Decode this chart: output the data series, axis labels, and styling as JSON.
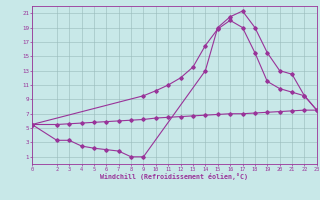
{
  "background_color": "#c8e8e8",
  "line_color": "#993399",
  "grid_color": "#99bbbb",
  "xlabel": "Windchill (Refroidissement éolien,°C)",
  "xlim": [
    0,
    23
  ],
  "ylim": [
    0,
    22
  ],
  "xticks": [
    0,
    2,
    3,
    4,
    5,
    6,
    7,
    8,
    9,
    10,
    11,
    12,
    13,
    14,
    15,
    16,
    17,
    18,
    19,
    20,
    21,
    22,
    23
  ],
  "yticks": [
    1,
    3,
    5,
    7,
    9,
    11,
    13,
    15,
    17,
    19,
    21
  ],
  "line1_x": [
    0,
    2,
    3,
    4,
    5,
    6,
    7,
    8,
    9,
    14,
    15,
    16,
    17,
    18,
    19,
    20,
    21,
    22,
    23
  ],
  "line1_y": [
    5.5,
    3.3,
    3.3,
    2.5,
    2.2,
    2.0,
    1.8,
    1.0,
    1.0,
    13.0,
    19.0,
    20.5,
    21.3,
    19.0,
    15.5,
    13.0,
    12.5,
    9.5,
    7.5
  ],
  "line2_x": [
    0,
    2,
    3,
    4,
    5,
    6,
    7,
    8,
    9,
    10,
    11,
    12,
    13,
    14,
    15,
    16,
    17,
    18,
    19,
    20,
    21,
    22,
    23
  ],
  "line2_y": [
    5.5,
    5.5,
    5.6,
    5.7,
    5.8,
    5.9,
    6.0,
    6.1,
    6.2,
    6.4,
    6.5,
    6.6,
    6.7,
    6.8,
    6.9,
    7.0,
    7.0,
    7.1,
    7.2,
    7.3,
    7.4,
    7.5,
    7.5
  ],
  "line3_x": [
    0,
    9,
    10,
    11,
    12,
    13,
    14,
    15,
    16,
    17,
    18,
    19,
    20,
    21,
    22,
    23
  ],
  "line3_y": [
    5.5,
    9.5,
    10.2,
    11.0,
    12.0,
    13.5,
    16.5,
    18.8,
    20.0,
    19.0,
    15.5,
    11.5,
    10.5,
    10.0,
    9.5,
    7.5
  ]
}
